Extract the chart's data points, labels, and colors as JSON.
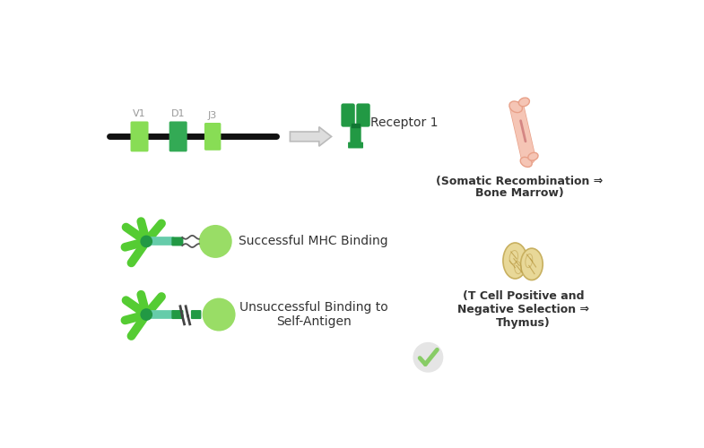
{
  "bg_color": "#ffffff",
  "green_light": "#55cc33",
  "green_dark": "#229944",
  "green_mid": "#44bb44",
  "green_pale": "#99dd66",
  "gray_label": "#aaaaaa",
  "text_color": "#333333",
  "bone_color": "#f5c5b5",
  "bone_stroke": "#e8a088",
  "bone_red": "#cc7777",
  "thymus_color": "#e8d898",
  "thymus_stroke": "#c8b060",
  "thymus_inner": "#b89840",
  "arrow_fill": "#dddddd",
  "arrow_edge": "#bbbbbb",
  "segment_labels": [
    "V1",
    "D1",
    "J3"
  ],
  "receptor_label": "Receptor 1",
  "bone_text_line1": "(Somatic Recombination ⇒",
  "bone_text_line2": "Bone Marrow)",
  "mhc_label": "Successful MHC Binding",
  "unsuccessful_label": "Unsuccessful Binding to\nSelf-Antigen",
  "thymus_text": "(T Cell Positive and\nNegative Selection ⇒\nThymus)",
  "check_color": "#88cc66",
  "check_bg": "#d0d0d0"
}
